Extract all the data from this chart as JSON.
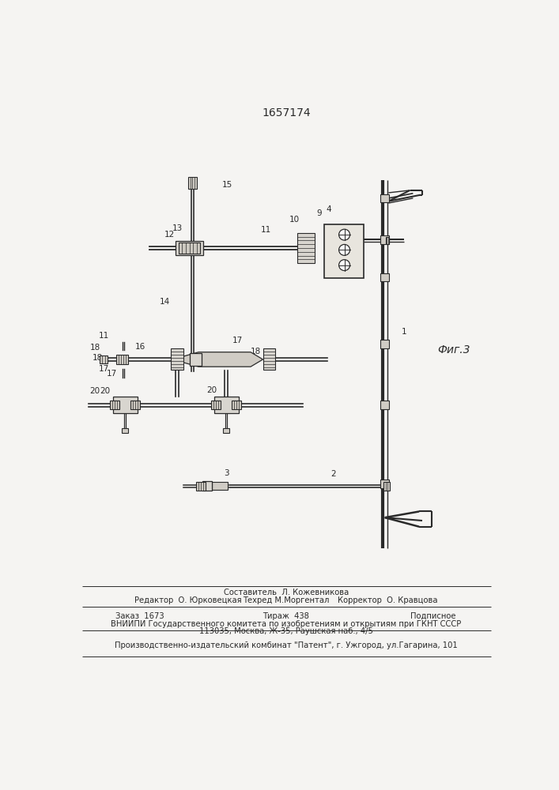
{
  "title": "1657174",
  "fig_label": "Фиг.3",
  "bg_color": "#f5f4f2",
  "line_color": "#2a2a2a",
  "title_fontsize": 10,
  "footer_fontsize": 7.2,
  "fig_label_fontsize": 10,
  "footer": {
    "line1_center": "Составитель  Л. Кожевникова",
    "line2_left": "Редактор  О. Юрковецкая",
    "line2_center": "Техред М.Моргентал",
    "line2_right": "Корректор  О. Кравцова",
    "line3_left": "Заказ  1673",
    "line3_center": "Тираж  438",
    "line3_right": "Подписное",
    "line4": "ВНИИПИ Государственного комитета по изобретениям и открытиям при ГКНТ СССР",
    "line5": "113035, Москва, Ж-35, Раушская наб., 4/5",
    "line6": "Производственно-издательский комбинат \"Патент\", г. Ужгород, ул.Гагарина, 101"
  }
}
